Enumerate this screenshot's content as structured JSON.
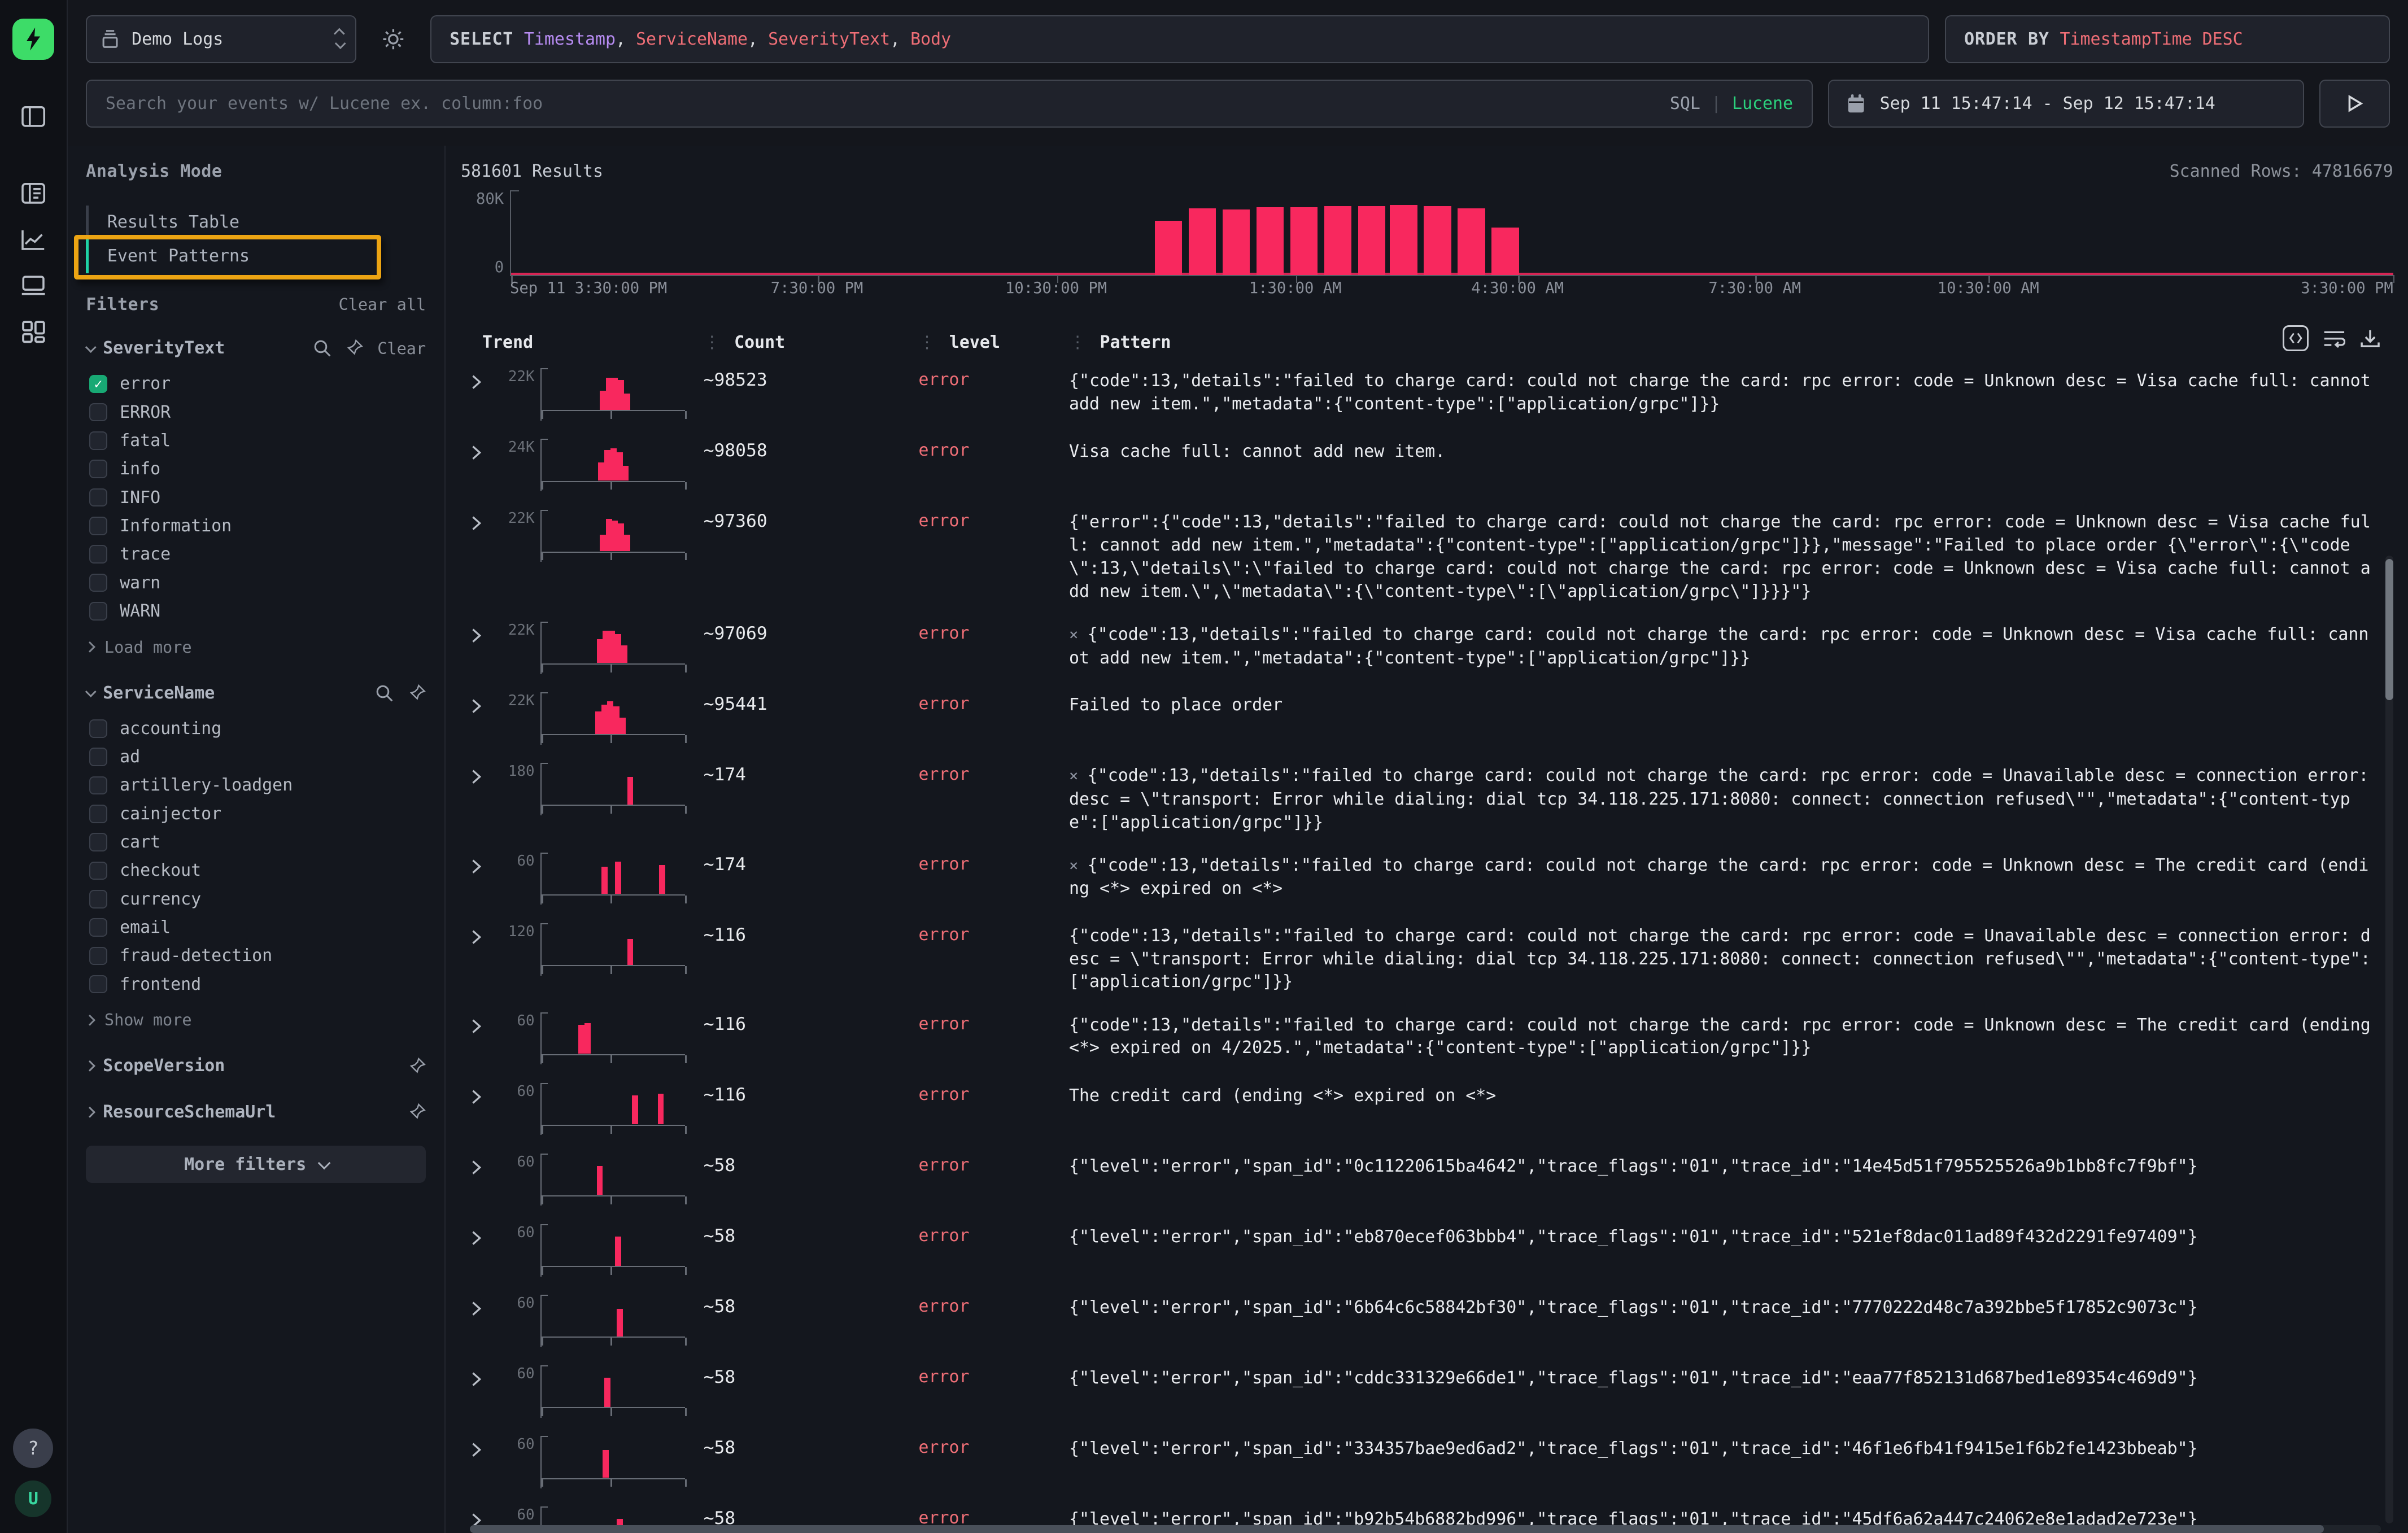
{
  "colors": {
    "accent_pink": "#f8285e",
    "error_text": "#ee6e76",
    "keyword_purple": "#b78cf2",
    "lucene_green": "#2bd27d",
    "check_green": "#18a974",
    "active_teal": "#1fd3a5",
    "highlight_yellow": "#eca413",
    "logo_green": "#3ddc68"
  },
  "rail": {
    "help_label": "?",
    "avatar_label": "U"
  },
  "topbar": {
    "source_select": {
      "label": "Demo Logs"
    },
    "sql_tokens": [
      {
        "text": "SELECT ",
        "cls": "tok-kw"
      },
      {
        "text": "Timestamp",
        "cls": "tok-purple"
      },
      {
        "text": ", ",
        "cls": "tok-plain"
      },
      {
        "text": "ServiceName",
        "cls": "tok-red"
      },
      {
        "text": ", ",
        "cls": "tok-plain"
      },
      {
        "text": "SeverityText",
        "cls": "tok-red"
      },
      {
        "text": ", ",
        "cls": "tok-plain"
      },
      {
        "text": "Body",
        "cls": "tok-red"
      }
    ],
    "orderby_tokens": [
      {
        "text": "ORDER BY ",
        "cls": "tok-kw"
      },
      {
        "text": "TimestampTime DESC",
        "cls": "tok-red"
      }
    ],
    "search": {
      "placeholder": "Search your events w/ Lucene ex. column:foo"
    },
    "lang_toggle": {
      "sql": "SQL",
      "separator": "|",
      "lucene": "Lucene"
    },
    "time_range": "Sep 11 15:47:14 - Sep 12 15:47:14"
  },
  "filters": {
    "analysis_mode_label": "Analysis Mode",
    "modes": [
      {
        "label": "Results Table",
        "active": false
      },
      {
        "label": "Event Patterns",
        "active": true,
        "highlighted": true
      }
    ],
    "filters_label": "Filters",
    "clear_all_label": "Clear all",
    "groups": [
      {
        "name": "SeverityText",
        "expanded": true,
        "search": true,
        "pin": true,
        "clear_label": "Clear",
        "options": [
          {
            "label": "error",
            "checked": true
          },
          {
            "label": "ERROR",
            "checked": false
          },
          {
            "label": "fatal",
            "checked": false
          },
          {
            "label": "info",
            "checked": false
          },
          {
            "label": "INFO",
            "checked": false
          },
          {
            "label": "Information",
            "checked": false
          },
          {
            "label": "trace",
            "checked": false
          },
          {
            "label": "warn",
            "checked": false
          },
          {
            "label": "WARN",
            "checked": false
          }
        ],
        "more_label": "Load more"
      },
      {
        "name": "ServiceName",
        "expanded": true,
        "search": true,
        "pin": true,
        "clear_label": null,
        "options": [
          {
            "label": "accounting",
            "checked": false
          },
          {
            "label": "ad",
            "checked": false
          },
          {
            "label": "artillery-loadgen",
            "checked": false
          },
          {
            "label": "cainjector",
            "checked": false
          },
          {
            "label": "cart",
            "checked": false
          },
          {
            "label": "checkout",
            "checked": false
          },
          {
            "label": "currency",
            "checked": false
          },
          {
            "label": "email",
            "checked": false
          },
          {
            "label": "fraud-detection",
            "checked": false
          },
          {
            "label": "frontend",
            "checked": false
          }
        ],
        "more_label": "Show more"
      },
      {
        "name": "ScopeVersion",
        "expanded": false,
        "search": false,
        "pin": true,
        "clear_label": null,
        "options": [],
        "more_label": null
      },
      {
        "name": "ResourceSchemaUrl",
        "expanded": false,
        "search": false,
        "pin": true,
        "clear_label": null,
        "options": [],
        "more_label": null
      }
    ],
    "more_filters_label": "More filters"
  },
  "results": {
    "scanned": "Scanned Rows: 47816679"
  },
  "chart_data": {
    "type": "bar",
    "title": "581601 Results",
    "xlabel": "",
    "ylabel": "",
    "ylim": [
      0,
      80000
    ],
    "y_tick_labels": [
      "80K",
      "0"
    ],
    "x_tick_labels": [
      "Sep 11 3:30:00 PM",
      "7:30:00 PM",
      "10:30:00 PM",
      "1:30:00 AM",
      "4:30:00 AM",
      "7:30:00 AM",
      "10:30:00 AM",
      "3:30:00 PM"
    ],
    "x_tick_positions": [
      0,
      0.163,
      0.29,
      0.417,
      0.535,
      0.661,
      0.785,
      1.0
    ],
    "bars": [
      {
        "x": 0.342,
        "value": 51000
      },
      {
        "x": 0.36,
        "value": 63000
      },
      {
        "x": 0.378,
        "value": 62000
      },
      {
        "x": 0.396,
        "value": 64000
      },
      {
        "x": 0.414,
        "value": 64000
      },
      {
        "x": 0.432,
        "value": 65000
      },
      {
        "x": 0.45,
        "value": 65000
      },
      {
        "x": 0.467,
        "value": 66000
      },
      {
        "x": 0.485,
        "value": 65000
      },
      {
        "x": 0.503,
        "value": 63000
      },
      {
        "x": 0.521,
        "value": 45000
      }
    ],
    "baseline_near_zero": true,
    "legend": null,
    "grid": false
  },
  "table": {
    "headers": [
      "Trend",
      "Count",
      "level",
      "Pattern"
    ],
    "rows": [
      {
        "count": "~98523",
        "level": "error",
        "excluded_marker": false,
        "trend": {
          "ymax_label": "22K",
          "bars": [
            [
              0.38,
              0.6
            ],
            [
              0.42,
              1
            ],
            [
              0.46,
              1
            ],
            [
              0.5,
              0.92
            ],
            [
              0.54,
              0.5
            ]
          ]
        },
        "pattern": "{\"code\":13,\"details\":\"failed to charge card: could not charge the card: rpc error: code = Unknown desc = Visa cache full: cannot add new item.\",\"metadata\":{\"content-type\":[\"application/grpc\"]}}"
      },
      {
        "count": "~98058",
        "level": "error",
        "excluded_marker": false,
        "trend": {
          "ymax_label": "24K",
          "bars": [
            [
              0.37,
              0.55
            ],
            [
              0.41,
              0.95
            ],
            [
              0.45,
              1
            ],
            [
              0.49,
              0.88
            ],
            [
              0.53,
              0.45
            ]
          ]
        },
        "pattern": "Visa cache full: cannot add new item."
      },
      {
        "count": "~97360",
        "level": "error",
        "excluded_marker": false,
        "trend": {
          "ymax_label": "22K",
          "bars": [
            [
              0.38,
              0.5
            ],
            [
              0.42,
              1
            ],
            [
              0.46,
              0.95
            ],
            [
              0.5,
              0.85
            ],
            [
              0.54,
              0.5
            ]
          ]
        },
        "pattern": "{\"error\":{\"code\":13,\"details\":\"failed to charge card: could not charge the card: rpc error: code = Unknown desc = Visa cache full: cannot add new item.\",\"metadata\":{\"content-type\":[\"application/grpc\"]}},\"message\":\"Failed to place order {\\\"error\\\":{\\\"code\\\":13,\\\"details\\\":\\\"failed to charge card: could not charge the card: rpc error: code = Unknown desc = Visa cache full: cannot add new item.\\\",\\\"metadata\\\":{\\\"content-type\\\":[\\\"application/grpc\\\"]}}}\"}"
      },
      {
        "count": "~97069",
        "level": "error",
        "excluded_marker": true,
        "trend": {
          "ymax_label": "22K",
          "bars": [
            [
              0.36,
              0.75
            ],
            [
              0.4,
              1
            ],
            [
              0.44,
              1
            ],
            [
              0.48,
              0.9
            ],
            [
              0.52,
              0.55
            ]
          ]
        },
        "pattern": "{\"code\":13,\"details\":\"failed to charge card: could not charge the card: rpc error: code = Unknown desc = Visa cache full: cannot add new item.\",\"metadata\":{\"content-type\":[\"application/grpc\"]}}"
      },
      {
        "count": "~95441",
        "level": "error",
        "excluded_marker": false,
        "trend": {
          "ymax_label": "22K",
          "bars": [
            [
              0.35,
              0.7
            ],
            [
              0.39,
              0.9
            ],
            [
              0.43,
              1
            ],
            [
              0.47,
              0.85
            ],
            [
              0.51,
              0.5
            ]
          ]
        },
        "pattern": "Failed to place order"
      },
      {
        "count": "~174",
        "level": "error",
        "excluded_marker": true,
        "trend": {
          "ymax_label": "180",
          "bars": [
            [
              0.56,
              0.85
            ]
          ]
        },
        "pattern": "{\"code\":13,\"details\":\"failed to charge card: could not charge the card: rpc error: code = Unavailable desc = connection error: desc = \\\"transport: Error while dialing: dial tcp 34.118.225.171:8080: connect: connection refused\\\"\",\"metadata\":{\"content-type\":[\"application/grpc\"]}}"
      },
      {
        "count": "~174",
        "level": "error",
        "excluded_marker": true,
        "trend": {
          "ymax_label": "60",
          "bars": [
            [
              0.39,
              0.85
            ],
            [
              0.48,
              1
            ],
            [
              0.77,
              0.9
            ]
          ]
        },
        "pattern": "{\"code\":13,\"details\":\"failed to charge card: could not charge the card: rpc error: code = Unknown desc = The credit card (ending <*> expired on <*>"
      },
      {
        "count": "~116",
        "level": "error",
        "excluded_marker": false,
        "trend": {
          "ymax_label": "120",
          "bars": [
            [
              0.56,
              0.8
            ]
          ]
        },
        "pattern": "{\"code\":13,\"details\":\"failed to charge card: could not charge the card: rpc error: code = Unavailable desc = connection error: desc = \\\"transport: Error while dialing: dial tcp 34.118.225.171:8080: connect: connection refused\\\"\",\"metadata\":{\"content-type\":[\"application/grpc\"]}}"
      },
      {
        "count": "~116",
        "level": "error",
        "excluded_marker": false,
        "trend": {
          "ymax_label": "60",
          "bars": [
            [
              0.24,
              0.9
            ],
            [
              0.28,
              0.95
            ]
          ]
        },
        "pattern": "{\"code\":13,\"details\":\"failed to charge card: could not charge the card: rpc error: code = Unknown desc = The credit card (ending <*> expired on 4/2025.\",\"metadata\":{\"content-type\":[\"application/grpc\"]}}"
      },
      {
        "count": "~116",
        "level": "error",
        "excluded_marker": false,
        "trend": {
          "ymax_label": "60",
          "bars": [
            [
              0.59,
              0.9
            ],
            [
              0.76,
              0.95
            ]
          ]
        },
        "pattern": "The credit card (ending <*> expired on <*>"
      },
      {
        "count": "~58",
        "level": "error",
        "excluded_marker": false,
        "trend": {
          "ymax_label": "60",
          "bars": [
            [
              0.36,
              0.9
            ]
          ]
        },
        "pattern": "{\"level\":\"error\",\"span_id\":\"0c11220615ba4642\",\"trace_flags\":\"01\",\"trace_id\":\"14e45d51f795525526a9b1bb8fc7f9bf\"}"
      },
      {
        "count": "~58",
        "level": "error",
        "excluded_marker": false,
        "trend": {
          "ymax_label": "60",
          "bars": [
            [
              0.48,
              0.9
            ]
          ]
        },
        "pattern": "{\"level\":\"error\",\"span_id\":\"eb870ecef063bbb4\",\"trace_flags\":\"01\",\"trace_id\":\"521ef8dac011ad89f432d2291fe97409\"}"
      },
      {
        "count": "~58",
        "level": "error",
        "excluded_marker": false,
        "trend": {
          "ymax_label": "60",
          "bars": [
            [
              0.49,
              0.85
            ]
          ]
        },
        "pattern": "{\"level\":\"error\",\"span_id\":\"6b64c6c58842bf30\",\"trace_flags\":\"01\",\"trace_id\":\"7770222d48c7a392bbe5f17852c9073c\"}"
      },
      {
        "count": "~58",
        "level": "error",
        "excluded_marker": false,
        "trend": {
          "ymax_label": "60",
          "bars": [
            [
              0.41,
              0.9
            ]
          ]
        },
        "pattern": "{\"level\":\"error\",\"span_id\":\"cddc331329e66de1\",\"trace_flags\":\"01\",\"trace_id\":\"eaa77f852131d687bed1e89354c469d9\"}"
      },
      {
        "count": "~58",
        "level": "error",
        "excluded_marker": false,
        "trend": {
          "ymax_label": "60",
          "bars": [
            [
              0.4,
              0.85
            ]
          ]
        },
        "pattern": "{\"level\":\"error\",\"span_id\":\"334357bae9ed6ad2\",\"trace_flags\":\"01\",\"trace_id\":\"46f1e6fb41f9415e1f6b2fe1423bbeab\"}"
      },
      {
        "count": "~58",
        "level": "error",
        "excluded_marker": false,
        "trend": {
          "ymax_label": "60",
          "bars": [
            [
              0.49,
              0.9
            ]
          ]
        },
        "pattern": "{\"level\":\"error\",\"span_id\":\"b92b54b6882bd996\",\"trace_flags\":\"01\",\"trace_id\":\"45df6a62a447c24062e8e1adad2e723e\"}"
      }
    ]
  }
}
